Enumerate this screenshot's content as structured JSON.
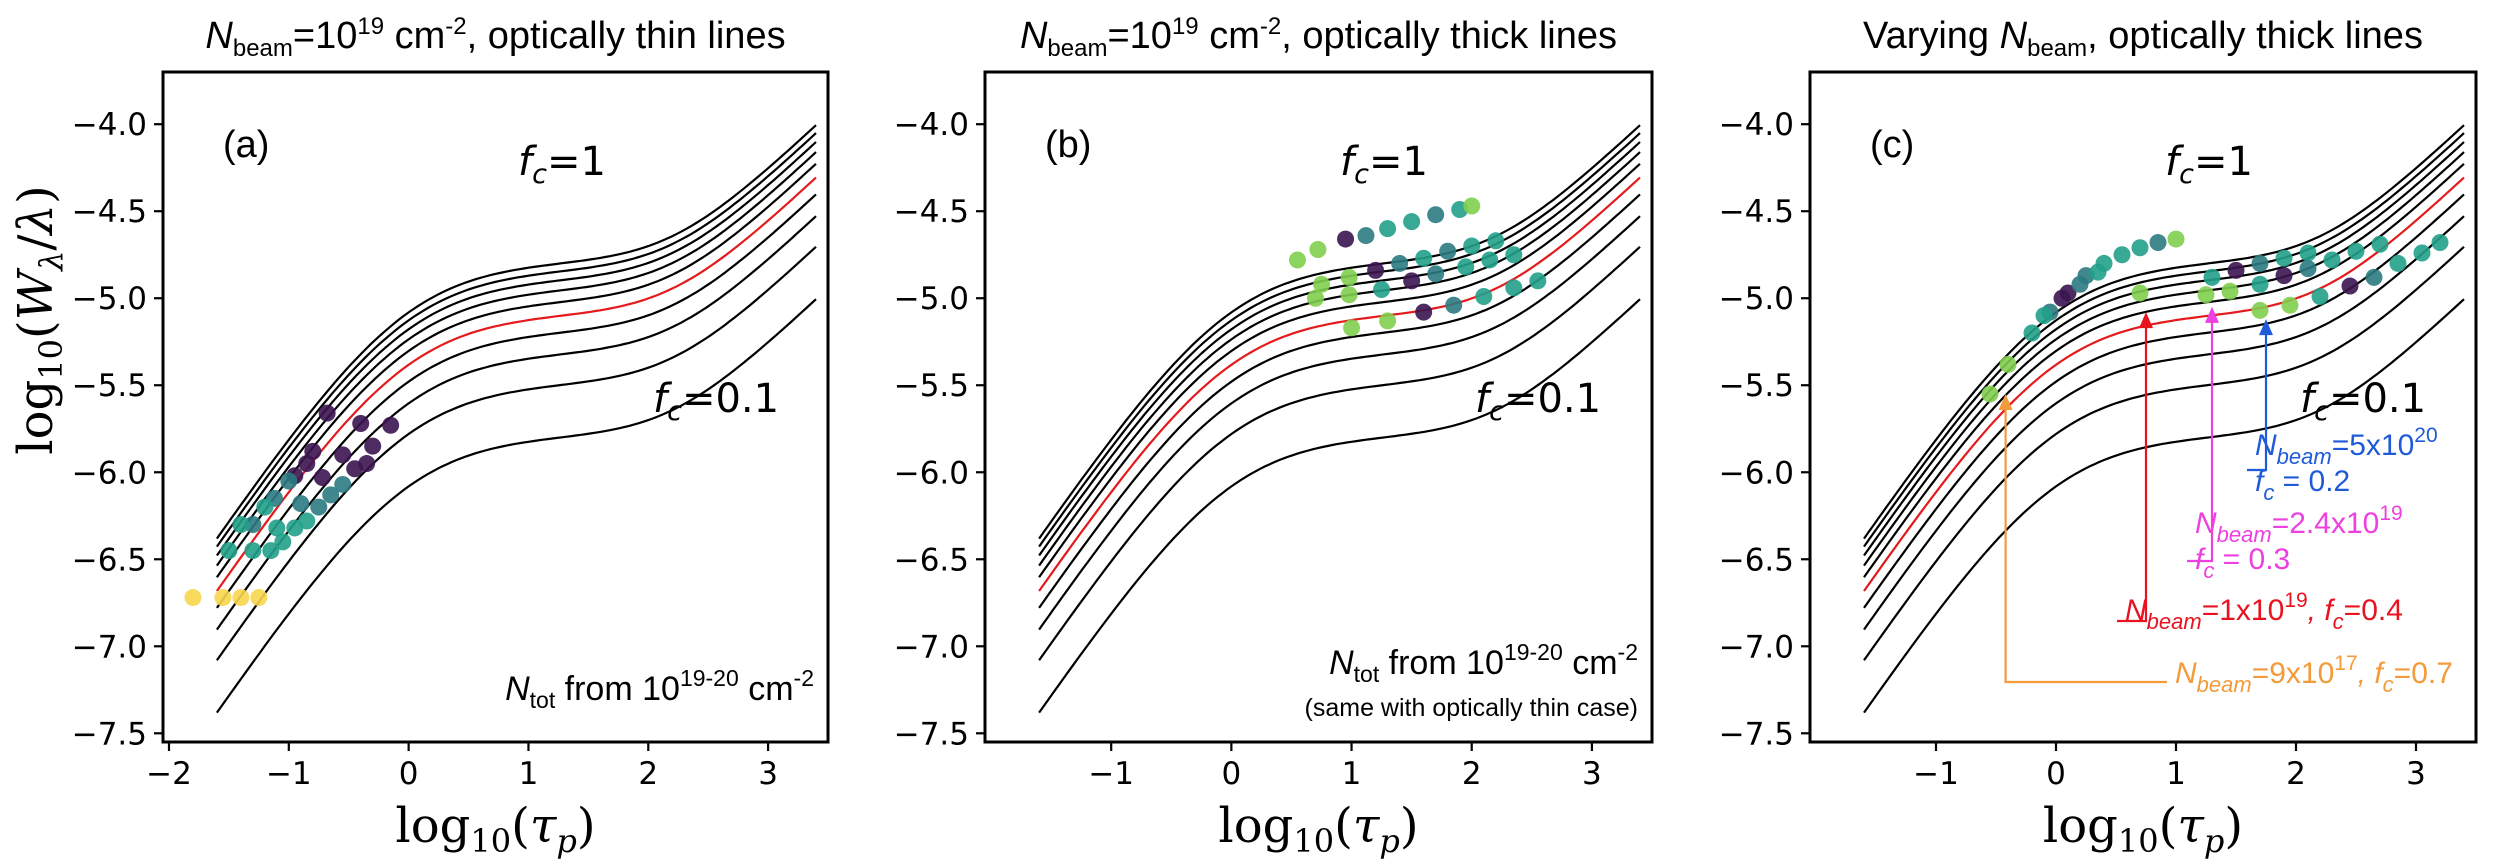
{
  "colors": {
    "curve": "#000000",
    "highlight_curve": "#e41a1c",
    "orange": "#f39a3a",
    "red": "#e8131f",
    "magenta": "#ee3fe0",
    "blue": "#1f5bd8",
    "dot_dark": "#3b1550",
    "dot_mid": "#2b7a82",
    "dot_teal": "#21a08a",
    "dot_green": "#7fce4e",
    "dot_yellow": "#f6d64d"
  },
  "chart_data": [
    {
      "panel": "a",
      "type": "line",
      "title": {
        "n_symbol": "N",
        "n_sub": "beam",
        "pre": "=10",
        "exp": "19",
        "unit": " cm",
        "unit_exp": "-2",
        "rest": ", optically thin lines"
      },
      "xlabel": "log10(τp)",
      "ylabel": "log10(Wλ/λ)",
      "xlim": [
        -2.05,
        3.5
      ],
      "ylim": [
        -7.55,
        -3.7
      ],
      "xticks": [
        -2,
        -1,
        0,
        1,
        2,
        3
      ],
      "xtick_labels": [
        "−2",
        "−1",
        "0",
        "1",
        "2",
        "3"
      ],
      "yticks": [
        -7.5,
        -7.0,
        -6.5,
        -6.0,
        -5.5,
        -5.0,
        -4.5,
        -4.0
      ],
      "ytick_labels": [
        "−7.5",
        "−7.0",
        "−6.5",
        "−6.0",
        "−5.5",
        "−5.0",
        "−4.5",
        "−4.0"
      ],
      "panel_label": "(a)",
      "fc_top_label": "fc=1",
      "fc_bottom_label": "fc=0.1",
      "curve_fc_values": [
        1.0,
        0.9,
        0.8,
        0.7,
        0.6,
        0.5,
        0.4,
        0.3,
        0.2,
        0.1
      ],
      "curve_x_range": [
        -1.6,
        3.42
      ],
      "highlight_fc": 0.5,
      "note": {
        "n_symbol": "N",
        "n_sub": "tot",
        "pre": " from 10",
        "exp": "19-20",
        "unit": " cm",
        "unit_exp": "-2"
      },
      "points": [
        {
          "x": -1.8,
          "y": -6.72,
          "c": "dot_yellow"
        },
        {
          "x": -1.55,
          "y": -6.72,
          "c": "dot_yellow"
        },
        {
          "x": -1.4,
          "y": -6.72,
          "c": "dot_yellow"
        },
        {
          "x": -1.25,
          "y": -6.72,
          "c": "dot_yellow"
        },
        {
          "x": -1.5,
          "y": -6.45,
          "c": "dot_teal"
        },
        {
          "x": -1.3,
          "y": -6.3,
          "c": "dot_mid"
        },
        {
          "x": -1.12,
          "y": -6.15,
          "c": "dot_mid"
        },
        {
          "x": -0.95,
          "y": -6.02,
          "c": "dot_dark"
        },
        {
          "x": -0.8,
          "y": -5.88,
          "c": "dot_dark"
        },
        {
          "x": -0.68,
          "y": -5.66,
          "c": "dot_dark"
        },
        {
          "x": -1.4,
          "y": -6.3,
          "c": "dot_teal"
        },
        {
          "x": -1.2,
          "y": -6.2,
          "c": "dot_teal"
        },
        {
          "x": -1.0,
          "y": -6.05,
          "c": "dot_mid"
        },
        {
          "x": -0.85,
          "y": -5.95,
          "c": "dot_dark"
        },
        {
          "x": -1.3,
          "y": -6.45,
          "c": "dot_teal"
        },
        {
          "x": -1.1,
          "y": -6.32,
          "c": "dot_teal"
        },
        {
          "x": -0.9,
          "y": -6.18,
          "c": "dot_mid"
        },
        {
          "x": -0.72,
          "y": -6.03,
          "c": "dot_dark"
        },
        {
          "x": -0.55,
          "y": -5.9,
          "c": "dot_dark"
        },
        {
          "x": -0.4,
          "y": -5.72,
          "c": "dot_dark"
        },
        {
          "x": -1.05,
          "y": -6.4,
          "c": "dot_teal"
        },
        {
          "x": -0.85,
          "y": -6.28,
          "c": "dot_teal"
        },
        {
          "x": -0.65,
          "y": -6.13,
          "c": "dot_mid"
        },
        {
          "x": -0.45,
          "y": -5.98,
          "c": "dot_dark"
        },
        {
          "x": -0.3,
          "y": -5.85,
          "c": "dot_dark"
        },
        {
          "x": -0.15,
          "y": -5.73,
          "c": "dot_dark"
        },
        {
          "x": -1.15,
          "y": -6.45,
          "c": "dot_teal"
        },
        {
          "x": -0.95,
          "y": -6.32,
          "c": "dot_teal"
        },
        {
          "x": -0.75,
          "y": -6.2,
          "c": "dot_mid"
        },
        {
          "x": -0.55,
          "y": -6.07,
          "c": "dot_mid"
        },
        {
          "x": -0.35,
          "y": -5.95,
          "c": "dot_dark"
        }
      ]
    },
    {
      "panel": "b",
      "type": "line",
      "title": {
        "n_symbol": "N",
        "n_sub": "beam",
        "pre": "=10",
        "exp": "19",
        "unit": " cm",
        "unit_exp": "-2",
        "rest": ", optically thick lines"
      },
      "xlabel": "log10(τp)",
      "xlim": [
        -2.05,
        3.5
      ],
      "ylim": [
        -7.55,
        -3.7
      ],
      "xticks": [
        -1,
        0,
        1,
        2,
        3
      ],
      "xtick_labels": [
        "−1",
        "0",
        "1",
        "2",
        "3"
      ],
      "yticks": [
        -7.5,
        -7.0,
        -6.5,
        -6.0,
        -5.5,
        -5.0,
        -4.5,
        -4.0
      ],
      "ytick_labels": [
        "−7.5",
        "−7.0",
        "−6.5",
        "−6.0",
        "−5.5",
        "−5.0",
        "−4.5",
        "−4.0"
      ],
      "panel_label": "(b)",
      "fc_top_label": "fc=1",
      "fc_bottom_label": "fc=0.1",
      "curve_fc_values": [
        1.0,
        0.9,
        0.8,
        0.7,
        0.6,
        0.5,
        0.4,
        0.3,
        0.2,
        0.1
      ],
      "curve_x_range": [
        -1.6,
        3.42
      ],
      "highlight_fc": 0.5,
      "note": {
        "n_symbol": "N",
        "n_sub": "tot",
        "pre": " from 10",
        "exp": "19-20",
        "unit": " cm",
        "unit_exp": "-2"
      },
      "note2": "(same with optically thin case)",
      "points": [
        {
          "x": 0.55,
          "y": -4.78,
          "c": "dot_green"
        },
        {
          "x": 0.72,
          "y": -4.72,
          "c": "dot_green"
        },
        {
          "x": 0.95,
          "y": -4.66,
          "c": "dot_dark"
        },
        {
          "x": 1.12,
          "y": -4.64,
          "c": "dot_mid"
        },
        {
          "x": 1.3,
          "y": -4.6,
          "c": "dot_teal"
        },
        {
          "x": 1.5,
          "y": -4.56,
          "c": "dot_teal"
        },
        {
          "x": 1.7,
          "y": -4.52,
          "c": "dot_mid"
        },
        {
          "x": 1.9,
          "y": -4.49,
          "c": "dot_teal"
        },
        {
          "x": 2.0,
          "y": -4.47,
          "c": "dot_green"
        },
        {
          "x": 0.75,
          "y": -4.92,
          "c": "dot_green"
        },
        {
          "x": 0.98,
          "y": -4.88,
          "c": "dot_green"
        },
        {
          "x": 1.2,
          "y": -4.84,
          "c": "dot_dark"
        },
        {
          "x": 1.4,
          "y": -4.8,
          "c": "dot_mid"
        },
        {
          "x": 1.6,
          "y": -4.77,
          "c": "dot_teal"
        },
        {
          "x": 1.8,
          "y": -4.73,
          "c": "dot_mid"
        },
        {
          "x": 2.0,
          "y": -4.7,
          "c": "dot_teal"
        },
        {
          "x": 2.2,
          "y": -4.67,
          "c": "dot_teal"
        },
        {
          "x": 0.7,
          "y": -5.0,
          "c": "dot_green"
        },
        {
          "x": 0.98,
          "y": -4.98,
          "c": "dot_green"
        },
        {
          "x": 1.25,
          "y": -4.95,
          "c": "dot_teal"
        },
        {
          "x": 1.5,
          "y": -4.9,
          "c": "dot_dark"
        },
        {
          "x": 1.7,
          "y": -4.86,
          "c": "dot_mid"
        },
        {
          "x": 1.95,
          "y": -4.82,
          "c": "dot_teal"
        },
        {
          "x": 2.15,
          "y": -4.78,
          "c": "dot_teal"
        },
        {
          "x": 2.35,
          "y": -4.75,
          "c": "dot_teal"
        },
        {
          "x": 1.0,
          "y": -5.17,
          "c": "dot_green"
        },
        {
          "x": 1.3,
          "y": -5.13,
          "c": "dot_green"
        },
        {
          "x": 1.6,
          "y": -5.08,
          "c": "dot_dark"
        },
        {
          "x": 1.85,
          "y": -5.04,
          "c": "dot_mid"
        },
        {
          "x": 2.1,
          "y": -4.99,
          "c": "dot_teal"
        },
        {
          "x": 2.35,
          "y": -4.94,
          "c": "dot_teal"
        },
        {
          "x": 2.55,
          "y": -4.9,
          "c": "dot_teal"
        }
      ]
    },
    {
      "panel": "c",
      "type": "line",
      "title": {
        "pre_text": "Varying ",
        "n_symbol": "N",
        "n_sub": "beam",
        "rest": ", optically thick lines"
      },
      "xlabel": "log10(τp)",
      "xlim": [
        -2.05,
        3.5
      ],
      "ylim": [
        -7.55,
        -3.7
      ],
      "xticks": [
        -1,
        0,
        1,
        2,
        3
      ],
      "xtick_labels": [
        "−1",
        "0",
        "1",
        "2",
        "3"
      ],
      "yticks": [
        -7.5,
        -7.0,
        -6.5,
        -6.0,
        -5.5,
        -5.0,
        -4.5,
        -4.0
      ],
      "ytick_labels": [
        "−7.5",
        "−7.0",
        "−6.5",
        "−6.0",
        "−5.5",
        "−5.0",
        "−4.5",
        "−4.0"
      ],
      "panel_label": "(c)",
      "fc_top_label": "fc=1",
      "fc_bottom_label": "fc=0.1",
      "curve_fc_values": [
        1.0,
        0.9,
        0.8,
        0.7,
        0.6,
        0.5,
        0.4,
        0.3,
        0.2,
        0.1
      ],
      "curve_x_range": [
        -1.6,
        3.42
      ],
      "highlight_fc": 0.5,
      "annotations": [
        {
          "n": "N",
          "sub": "beam",
          "val": "=5x10",
          "exp": "20",
          "fc_line": "f",
          "fc_sub": "c",
          "fc_val": " = 0.2",
          "color": "blue",
          "two_line": true,
          "arrow_x": 1.75,
          "arrow_y": -5.12
        },
        {
          "n": "N",
          "sub": "beam",
          "val": "=2.4x10",
          "exp": "19",
          "fc_line": "f",
          "fc_sub": "c",
          "fc_val": " = 0.3",
          "color": "magenta",
          "two_line": true,
          "arrow_x": 1.3,
          "arrow_y": -5.05
        },
        {
          "n": "N",
          "sub": "beam",
          "val": "=1x10",
          "exp": "19",
          "fc_text": ", f",
          "fc_sub": "c",
          "fc_val": "=0.4",
          "color": "red",
          "two_line": false,
          "arrow_x": 0.75,
          "arrow_y": -5.08
        },
        {
          "n": "N",
          "sub": "beam",
          "val": "=9x10",
          "exp": "17",
          "fc_text": ", f",
          "fc_sub": "c",
          "fc_val": "=0.7",
          "color": "orange",
          "two_line": false,
          "arrow_x": -0.42,
          "arrow_y": -5.55
        }
      ],
      "points": [
        {
          "x": -0.4,
          "y": -5.38,
          "c": "dot_green"
        },
        {
          "x": -0.55,
          "y": -5.55,
          "c": "dot_green"
        },
        {
          "x": -0.2,
          "y": -5.2,
          "c": "dot_teal"
        },
        {
          "x": -0.05,
          "y": -5.08,
          "c": "dot_mid"
        },
        {
          "x": 0.1,
          "y": -4.97,
          "c": "dot_dark"
        },
        {
          "x": 0.25,
          "y": -4.87,
          "c": "dot_mid"
        },
        {
          "x": 0.4,
          "y": -4.8,
          "c": "dot_teal"
        },
        {
          "x": 0.55,
          "y": -4.75,
          "c": "dot_teal"
        },
        {
          "x": 0.7,
          "y": -4.71,
          "c": "dot_teal"
        },
        {
          "x": 0.85,
          "y": -4.68,
          "c": "dot_mid"
        },
        {
          "x": 1.0,
          "y": -4.66,
          "c": "dot_green"
        },
        {
          "x": -0.1,
          "y": -5.1,
          "c": "dot_teal"
        },
        {
          "x": 0.05,
          "y": -5.0,
          "c": "dot_dark"
        },
        {
          "x": 0.2,
          "y": -4.92,
          "c": "dot_mid"
        },
        {
          "x": 0.35,
          "y": -4.85,
          "c": "dot_teal"
        },
        {
          "x": 0.7,
          "y": -4.97,
          "c": "dot_green"
        },
        {
          "x": 1.3,
          "y": -4.88,
          "c": "dot_teal"
        },
        {
          "x": 1.5,
          "y": -4.84,
          "c": "dot_dark"
        },
        {
          "x": 1.7,
          "y": -4.8,
          "c": "dot_mid"
        },
        {
          "x": 1.9,
          "y": -4.77,
          "c": "dot_teal"
        },
        {
          "x": 2.1,
          "y": -4.74,
          "c": "dot_teal"
        },
        {
          "x": 1.25,
          "y": -4.98,
          "c": "dot_green"
        },
        {
          "x": 1.45,
          "y": -4.96,
          "c": "dot_green"
        },
        {
          "x": 1.7,
          "y": -4.92,
          "c": "dot_teal"
        },
        {
          "x": 1.9,
          "y": -4.87,
          "c": "dot_dark"
        },
        {
          "x": 2.1,
          "y": -4.83,
          "c": "dot_mid"
        },
        {
          "x": 2.3,
          "y": -4.78,
          "c": "dot_teal"
        },
        {
          "x": 2.5,
          "y": -4.73,
          "c": "dot_teal"
        },
        {
          "x": 2.7,
          "y": -4.69,
          "c": "dot_teal"
        },
        {
          "x": 1.7,
          "y": -5.07,
          "c": "dot_green"
        },
        {
          "x": 1.95,
          "y": -5.04,
          "c": "dot_green"
        },
        {
          "x": 2.2,
          "y": -4.99,
          "c": "dot_teal"
        },
        {
          "x": 2.45,
          "y": -4.93,
          "c": "dot_dark"
        },
        {
          "x": 2.65,
          "y": -4.88,
          "c": "dot_mid"
        },
        {
          "x": 2.85,
          "y": -4.8,
          "c": "dot_teal"
        },
        {
          "x": 3.05,
          "y": -4.74,
          "c": "dot_teal"
        },
        {
          "x": 3.2,
          "y": -4.68,
          "c": "dot_teal"
        }
      ]
    }
  ],
  "ylabel": "log10(Wλ/λ)"
}
